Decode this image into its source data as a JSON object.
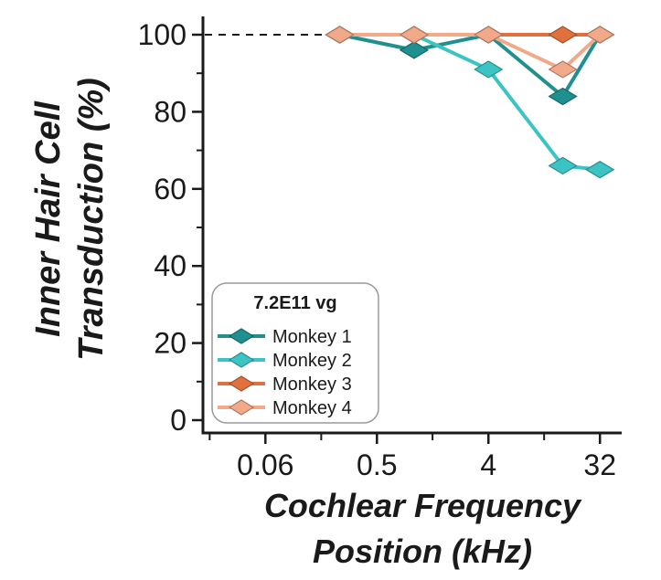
{
  "chart_data": {
    "type": "line",
    "title": "",
    "ylabel": [
      "Inner Hair Cell",
      "Transduction (%)"
    ],
    "xlabel": [
      "Cochlear Frequency",
      "Position (kHz)"
    ],
    "x_scale": "log2",
    "xlim": [
      0.0195,
      48
    ],
    "ylim": [
      0,
      100
    ],
    "x_ticks": [
      {
        "value": 0.0625,
        "label": "0.06"
      },
      {
        "value": 0.5,
        "label": "0.5"
      },
      {
        "value": 4,
        "label": "4"
      },
      {
        "value": 32,
        "label": "32"
      }
    ],
    "x_minor_ticks": [
      0.0221,
      0.177,
      1.41,
      11.3
    ],
    "y_ticks": [
      {
        "value": 0,
        "label": "0"
      },
      {
        "value": 20,
        "label": "20"
      },
      {
        "value": 40,
        "label": "40"
      },
      {
        "value": 60,
        "label": "60"
      },
      {
        "value": 80,
        "label": "80"
      },
      {
        "value": 100,
        "label": "100"
      }
    ],
    "y_minor_ticks": [
      10,
      30,
      50,
      70,
      90
    ],
    "reference_line": {
      "y": 100,
      "x_from": 0.0195,
      "x_to": 0.25,
      "style": "dashed"
    },
    "legend": {
      "title": "7.2E11 vg",
      "position": "lower-left"
    },
    "series": [
      {
        "name": "Monkey 1",
        "color": "#1f8f8f",
        "x": [
          0.25,
          1,
          4,
          16,
          32
        ],
        "values": [
          100,
          96,
          100,
          84,
          100
        ]
      },
      {
        "name": "Monkey 2",
        "color": "#3cc4c4",
        "x": [
          0.25,
          1,
          4,
          16,
          32
        ],
        "values": [
          100,
          100,
          91,
          66,
          65
        ]
      },
      {
        "name": "Monkey 3",
        "color": "#e0713f",
        "x": [
          0.25,
          1,
          4,
          16,
          32
        ],
        "values": [
          100,
          100,
          100,
          100,
          100
        ]
      },
      {
        "name": "Monkey 4",
        "color": "#f2a98a",
        "x": [
          0.25,
          1,
          4,
          16,
          32
        ],
        "values": [
          100,
          100,
          100,
          91,
          100
        ]
      }
    ]
  }
}
